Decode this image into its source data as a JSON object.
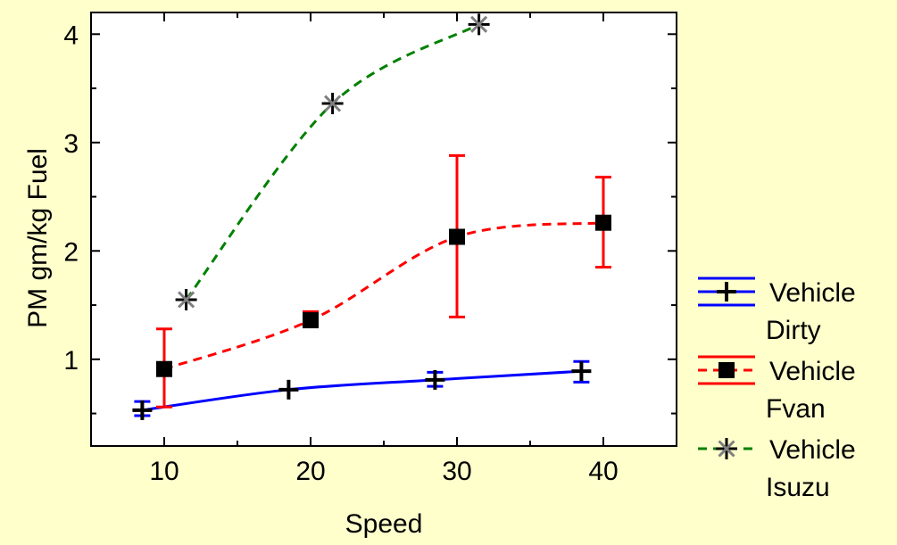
{
  "chart_data": {
    "type": "line",
    "xlabel": "Speed",
    "ylabel": "PM gm/kg Fuel",
    "xlim": [
      5,
      45
    ],
    "ylim": [
      0.2,
      4.2
    ],
    "xticks": [
      10,
      20,
      30,
      40
    ],
    "yticks": [
      1,
      2,
      3,
      4
    ],
    "grid": false,
    "legend_position": "right",
    "series": [
      {
        "name": "Vehicle Dirty",
        "name_lines": [
          "Vehicle",
          "Dirty"
        ],
        "color": "#0000FF",
        "line_style": "solid",
        "marker": "plus",
        "x": [
          8.5,
          18.5,
          28.5,
          38.5
        ],
        "y": [
          0.53,
          0.72,
          0.81,
          0.89
        ],
        "err_low": [
          0.48,
          0.72,
          0.75,
          0.79
        ],
        "err_high": [
          0.61,
          0.72,
          0.88,
          0.98
        ]
      },
      {
        "name": "Vehicle Fvan",
        "name_lines": [
          "Vehicle",
          "Fvan"
        ],
        "color": "#FF0000",
        "line_style": "dashed",
        "marker": "square",
        "x": [
          10,
          20,
          30,
          40
        ],
        "y": [
          0.91,
          1.36,
          2.13,
          2.26
        ],
        "err_low": [
          0.56,
          1.32,
          1.39,
          1.85
        ],
        "err_high": [
          1.28,
          1.44,
          2.88,
          2.68
        ]
      },
      {
        "name": "Vehicle Isuzu",
        "name_lines": [
          "Vehicle",
          "Isuzu"
        ],
        "color": "#008000",
        "line_style": "dashed",
        "marker": "star",
        "x": [
          11.5,
          21.5,
          31.5
        ],
        "y": [
          1.55,
          3.36,
          4.09
        ],
        "err_low": [
          1.55,
          3.36,
          4.09
        ],
        "err_high": [
          1.55,
          3.36,
          4.09
        ]
      }
    ]
  }
}
